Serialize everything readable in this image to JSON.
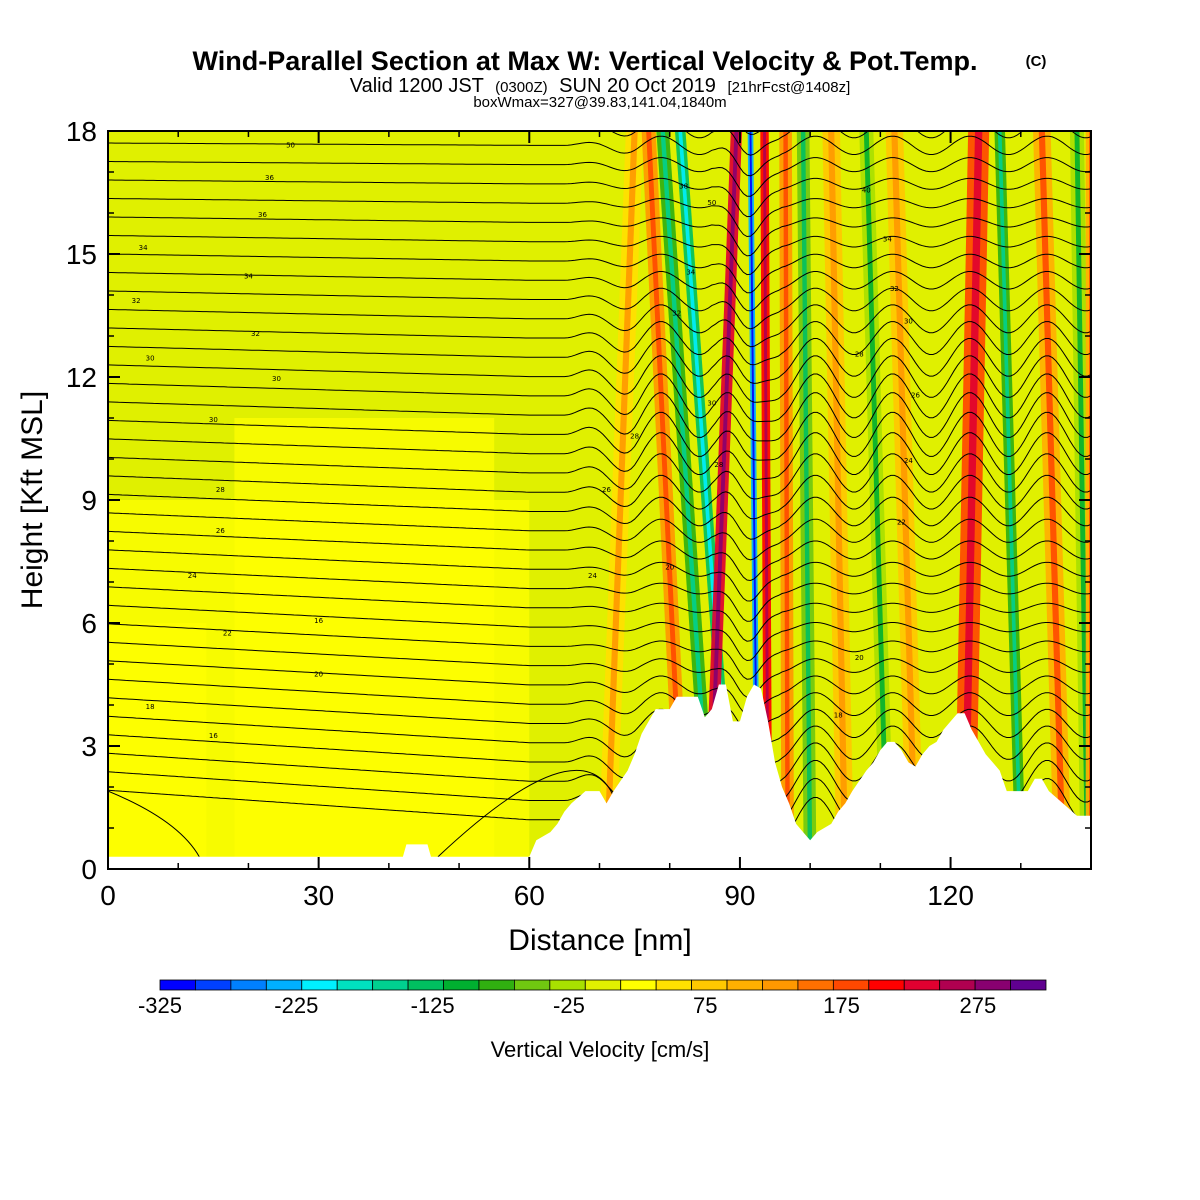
{
  "title": {
    "main": "Wind-Parallel Section at Max W: Vertical Velocity & Pot.Temp.",
    "copyright": "(C)",
    "valid_prefix": "Valid 1200 JST",
    "valid_utc": "(0300Z)",
    "valid_date": "SUN 20 Oct 2019",
    "forecast": "[21hrFcst@1408z]",
    "box_info": "boxWmax=327@39.83,141.04,1840m"
  },
  "chart_data": {
    "type": "heatmap",
    "xlabel": "Distance [nm]",
    "ylabel": "Height [Kft MSL]",
    "xlim": [
      0,
      140
    ],
    "ylim": [
      0,
      18
    ],
    "x_ticks": [
      0,
      30,
      60,
      90,
      120
    ],
    "y_ticks": [
      0,
      3,
      6,
      9,
      12,
      15,
      18
    ],
    "colorbar": {
      "label": "Vertical Velocity [cm/s]",
      "min": -325,
      "max": 325,
      "step": 25,
      "tick_labels": [
        "-325",
        "-225",
        "-125",
        "-25",
        "75",
        "175",
        "275"
      ],
      "tick_values": [
        -325,
        -225,
        -125,
        -25,
        75,
        175,
        275
      ],
      "colors": [
        "#0000ff",
        "#0040ff",
        "#0080ff",
        "#00b0ff",
        "#00f0ff",
        "#00e0c0",
        "#00d090",
        "#00c060",
        "#00b030",
        "#30b010",
        "#70c810",
        "#a8e000",
        "#e0f000",
        "#ffff00",
        "#ffe000",
        "#ffc800",
        "#ffb000",
        "#ff9800",
        "#ff7000",
        "#ff4800",
        "#ff0000",
        "#e00030",
        "#b00050",
        "#880070",
        "#600090"
      ]
    },
    "terrain": [
      [
        0,
        0.3
      ],
      [
        42,
        0.3
      ],
      [
        42.5,
        0.6
      ],
      [
        45.5,
        0.6
      ],
      [
        46,
        0.3
      ],
      [
        60,
        0.3
      ],
      [
        61,
        0.7
      ],
      [
        63,
        0.9
      ],
      [
        64,
        1.1
      ],
      [
        65,
        1.4
      ],
      [
        66,
        1.6
      ],
      [
        68,
        1.9
      ],
      [
        70,
        1.9
      ],
      [
        71,
        1.6
      ],
      [
        72,
        1.9
      ],
      [
        74,
        2.4
      ],
      [
        75,
        2.8
      ],
      [
        76,
        3.3
      ],
      [
        77,
        3.6
      ],
      [
        78,
        3.9
      ],
      [
        80,
        3.9
      ],
      [
        81,
        4.2
      ],
      [
        84,
        4.2
      ],
      [
        85,
        3.7
      ],
      [
        86,
        3.9
      ],
      [
        87,
        4.5
      ],
      [
        88,
        4.5
      ],
      [
        89,
        3.6
      ],
      [
        90,
        3.6
      ],
      [
        91,
        4.2
      ],
      [
        92,
        4.5
      ],
      [
        93,
        4.4
      ],
      [
        94,
        3.6
      ],
      [
        95,
        2.6
      ],
      [
        96,
        2.0
      ],
      [
        97,
        1.6
      ],
      [
        98,
        1.1
      ],
      [
        99,
        0.9
      ],
      [
        100,
        0.7
      ],
      [
        101,
        0.9
      ],
      [
        103,
        1.1
      ],
      [
        104,
        1.4
      ],
      [
        105,
        1.6
      ],
      [
        106,
        1.9
      ],
      [
        108,
        2.4
      ],
      [
        109,
        2.6
      ],
      [
        110,
        2.9
      ],
      [
        111,
        3.1
      ],
      [
        112,
        3.1
      ],
      [
        113,
        2.9
      ],
      [
        114,
        2.6
      ],
      [
        115,
        2.5
      ],
      [
        116,
        2.8
      ],
      [
        117,
        3.0
      ],
      [
        118,
        3.1
      ],
      [
        119,
        3.4
      ],
      [
        120,
        3.6
      ],
      [
        121,
        3.8
      ],
      [
        122,
        3.8
      ],
      [
        123,
        3.4
      ],
      [
        124,
        3.1
      ],
      [
        125,
        2.8
      ],
      [
        126,
        2.6
      ],
      [
        127,
        2.4
      ],
      [
        128,
        1.9
      ],
      [
        131,
        1.9
      ],
      [
        132,
        2.2
      ],
      [
        133,
        2.2
      ],
      [
        134,
        1.9
      ],
      [
        136,
        1.6
      ],
      [
        138,
        1.3
      ],
      [
        140,
        1.3
      ]
    ],
    "w_bands": [
      {
        "center_top": 75,
        "center_bottom": 71,
        "width": 2.5,
        "value": 40
      },
      {
        "center_top": 77,
        "center_bottom": 82,
        "width": 2,
        "value": 100
      },
      {
        "center_top": 79,
        "center_bottom": 86,
        "width": 1.8,
        "value": -100
      },
      {
        "center_top": 81.5,
        "center_bottom": 89,
        "width": 1.5,
        "value": -150
      },
      {
        "center_top": 89.5,
        "center_bottom": 85.5,
        "width": 1.6,
        "value": 200
      },
      {
        "center_top": 91.5,
        "center_bottom": 92.5,
        "width": 0.8,
        "value": -250
      },
      {
        "center_top": 93.5,
        "center_bottom": 94,
        "width": 1.2,
        "value": 175
      },
      {
        "center_top": 96.5,
        "center_bottom": 96.8,
        "width": 1.8,
        "value": 100
      },
      {
        "center_top": 99,
        "center_bottom": 100,
        "width": 1.8,
        "value": -75
      },
      {
        "center_top": 103,
        "center_bottom": 105,
        "width": 2.5,
        "value": 60
      },
      {
        "center_top": 108,
        "center_bottom": 111,
        "width": 2,
        "value": -50
      },
      {
        "center_top": 112,
        "center_bottom": 115,
        "width": 2.5,
        "value": 50
      },
      {
        "center_top": 124,
        "center_bottom": 122,
        "width": 3,
        "value": 150
      },
      {
        "center_top": 127,
        "center_bottom": 130,
        "width": 1.5,
        "value": -100
      },
      {
        "center_top": 133,
        "center_bottom": 136,
        "width": 2.5,
        "value": 90
      },
      {
        "center_top": 138,
        "center_bottom": 139.5,
        "width": 2,
        "value": -50
      },
      {
        "center_top": 140,
        "center_bottom": 140,
        "width": 1.5,
        "value": 90
      }
    ],
    "contour_labels": [
      "50",
      "36",
      "36",
      "34",
      "34",
      "32",
      "32",
      "30",
      "30",
      "30",
      "28",
      "26",
      "24",
      "22",
      "20",
      "18",
      "16",
      "16",
      "50",
      "38",
      "34",
      "32",
      "30",
      "28",
      "28",
      "26",
      "24",
      "20",
      "40",
      "34",
      "32",
      "30",
      "28",
      "26",
      "24",
      "22",
      "20",
      "18"
    ]
  }
}
